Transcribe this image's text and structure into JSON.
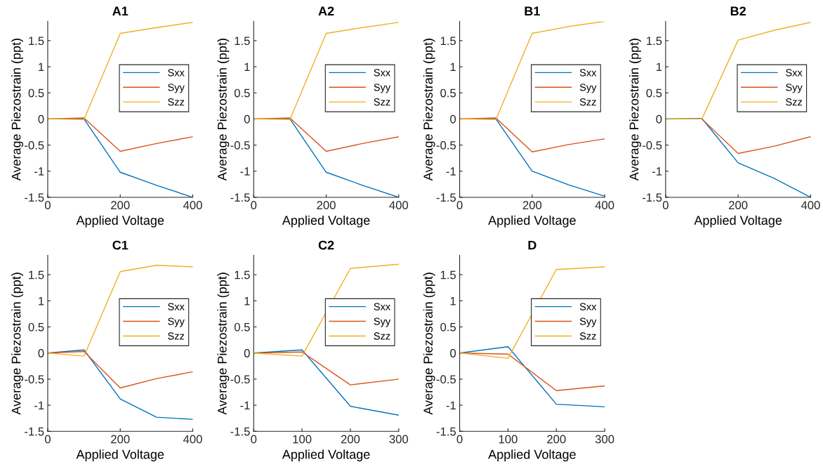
{
  "chart_data": [
    {
      "type": "line",
      "title": "A1",
      "xlabel": "Applied Voltage",
      "ylabel": "Average Piezostrain (ppt)",
      "x": [
        0,
        100,
        200,
        300,
        400
      ],
      "xlim": [
        0,
        400
      ],
      "xticks": [
        0,
        200,
        400
      ],
      "ylim": [
        -1.5,
        1.87
      ],
      "yticks": [
        -1.5,
        -1,
        -0.5,
        0,
        0.5,
        1,
        1.5
      ],
      "legend": "right",
      "grid": false,
      "series": [
        {
          "name": "Sxx",
          "color": "#0072bd",
          "values": [
            0,
            0,
            -1.02,
            -1.27,
            -1.5
          ]
        },
        {
          "name": "Syy",
          "color": "#d95319",
          "values": [
            0,
            0.02,
            -0.62,
            -0.47,
            -0.34
          ]
        },
        {
          "name": "Szz",
          "color": "#edb120",
          "values": [
            0,
            -0.01,
            1.64,
            1.75,
            1.85
          ]
        }
      ]
    },
    {
      "type": "line",
      "title": "A2",
      "xlabel": "Applied Voltage",
      "ylabel": "Average Piezostrain (ppt)",
      "x": [
        0,
        100,
        200,
        300,
        400
      ],
      "xlim": [
        0,
        400
      ],
      "xticks": [
        0,
        200,
        400
      ],
      "ylim": [
        -1.5,
        1.87
      ],
      "yticks": [
        -1.5,
        -1,
        -0.5,
        0,
        0.5,
        1,
        1.5
      ],
      "legend": "right",
      "grid": false,
      "series": [
        {
          "name": "Sxx",
          "color": "#0072bd",
          "values": [
            0,
            0,
            -1.02,
            -1.27,
            -1.5
          ]
        },
        {
          "name": "Syy",
          "color": "#d95319",
          "values": [
            0,
            0.02,
            -0.62,
            -0.47,
            -0.34
          ]
        },
        {
          "name": "Szz",
          "color": "#edb120",
          "values": [
            0,
            -0.01,
            1.64,
            1.75,
            1.85
          ]
        }
      ]
    },
    {
      "type": "line",
      "title": "B1",
      "xlabel": "Applied Voltage",
      "ylabel": "Average Piezostrain (ppt)",
      "x": [
        0,
        100,
        200,
        300,
        400
      ],
      "xlim": [
        0,
        400
      ],
      "xticks": [
        0,
        200,
        400
      ],
      "ylim": [
        -1.5,
        1.87
      ],
      "yticks": [
        -1.5,
        -1,
        -0.5,
        0,
        0.5,
        1,
        1.5
      ],
      "legend": "right",
      "grid": false,
      "series": [
        {
          "name": "Sxx",
          "color": "#0072bd",
          "values": [
            0,
            0,
            -1.0,
            -1.26,
            -1.48
          ]
        },
        {
          "name": "Syy",
          "color": "#d95319",
          "values": [
            0,
            0.02,
            -0.63,
            -0.49,
            -0.38
          ]
        },
        {
          "name": "Szz",
          "color": "#edb120",
          "values": [
            0,
            -0.01,
            1.64,
            1.77,
            1.87
          ]
        }
      ]
    },
    {
      "type": "line",
      "title": "B2",
      "xlabel": "Applied Voltage",
      "ylabel": "Average Piezostrain (ppt)",
      "x": [
        0,
        100,
        200,
        300,
        400
      ],
      "xlim": [
        0,
        400
      ],
      "xticks": [
        0,
        200,
        400
      ],
      "ylim": [
        -1.5,
        1.87
      ],
      "yticks": [
        -1.5,
        -1,
        -0.5,
        0,
        0.5,
        1,
        1.5
      ],
      "legend": "right",
      "grid": false,
      "series": [
        {
          "name": "Sxx",
          "color": "#0072bd",
          "values": [
            0,
            0.01,
            -0.84,
            -1.14,
            -1.5
          ]
        },
        {
          "name": "Syy",
          "color": "#d95319",
          "values": [
            0,
            0,
            -0.66,
            -0.52,
            -0.34
          ]
        },
        {
          "name": "Szz",
          "color": "#edb120",
          "values": [
            0,
            0,
            1.51,
            1.7,
            1.85
          ]
        }
      ]
    },
    {
      "type": "line",
      "title": "C1",
      "xlabel": "Applied Voltage",
      "ylabel": "Average Piezostrain (ppt)",
      "x": [
        0,
        100,
        200,
        300,
        400
      ],
      "xlim": [
        0,
        400
      ],
      "xticks": [
        0,
        200,
        400
      ],
      "ylim": [
        -1.5,
        1.87
      ],
      "yticks": [
        -1.5,
        -1,
        -0.5,
        0,
        0.5,
        1,
        1.5
      ],
      "legend": "right",
      "grid": false,
      "series": [
        {
          "name": "Sxx",
          "color": "#0072bd",
          "values": [
            0,
            0.06,
            -0.88,
            -1.23,
            -1.27
          ]
        },
        {
          "name": "Syy",
          "color": "#d95319",
          "values": [
            0,
            0.03,
            -0.67,
            -0.49,
            -0.36
          ]
        },
        {
          "name": "Szz",
          "color": "#edb120",
          "values": [
            0,
            -0.06,
            1.56,
            1.68,
            1.65
          ]
        }
      ]
    },
    {
      "type": "line",
      "title": "C2",
      "xlabel": "Applied Voltage",
      "ylabel": "Average Piezostrain (ppt)",
      "x": [
        0,
        100,
        200,
        300
      ],
      "xlim": [
        0,
        300
      ],
      "xticks": [
        0,
        100,
        200,
        300
      ],
      "ylim": [
        -1.5,
        1.87
      ],
      "yticks": [
        -1.5,
        -1,
        -0.5,
        0,
        0.5,
        1,
        1.5
      ],
      "legend": "right",
      "grid": false,
      "series": [
        {
          "name": "Sxx",
          "color": "#0072bd",
          "values": [
            0,
            0.06,
            -1.02,
            -1.19
          ]
        },
        {
          "name": "Syy",
          "color": "#d95319",
          "values": [
            0,
            0.02,
            -0.61,
            -0.5
          ]
        },
        {
          "name": "Szz",
          "color": "#edb120",
          "values": [
            0,
            -0.06,
            1.62,
            1.7
          ]
        }
      ]
    },
    {
      "type": "line",
      "title": "D",
      "xlabel": "Applied Voltage",
      "ylabel": "Average Piezostrain (ppt)",
      "x": [
        0,
        100,
        200,
        300
      ],
      "xlim": [
        0,
        300
      ],
      "xticks": [
        0,
        100,
        200,
        300
      ],
      "ylim": [
        -1.5,
        1.87
      ],
      "yticks": [
        -1.5,
        -1,
        -0.5,
        0,
        0.5,
        1,
        1.5
      ],
      "legend": "right",
      "grid": false,
      "series": [
        {
          "name": "Sxx",
          "color": "#0072bd",
          "values": [
            0,
            0.12,
            -0.98,
            -1.03
          ]
        },
        {
          "name": "Syy",
          "color": "#d95319",
          "values": [
            0,
            -0.02,
            -0.72,
            -0.63
          ]
        },
        {
          "name": "Szz",
          "color": "#edb120",
          "values": [
            0,
            -0.1,
            1.6,
            1.65
          ]
        }
      ]
    }
  ]
}
